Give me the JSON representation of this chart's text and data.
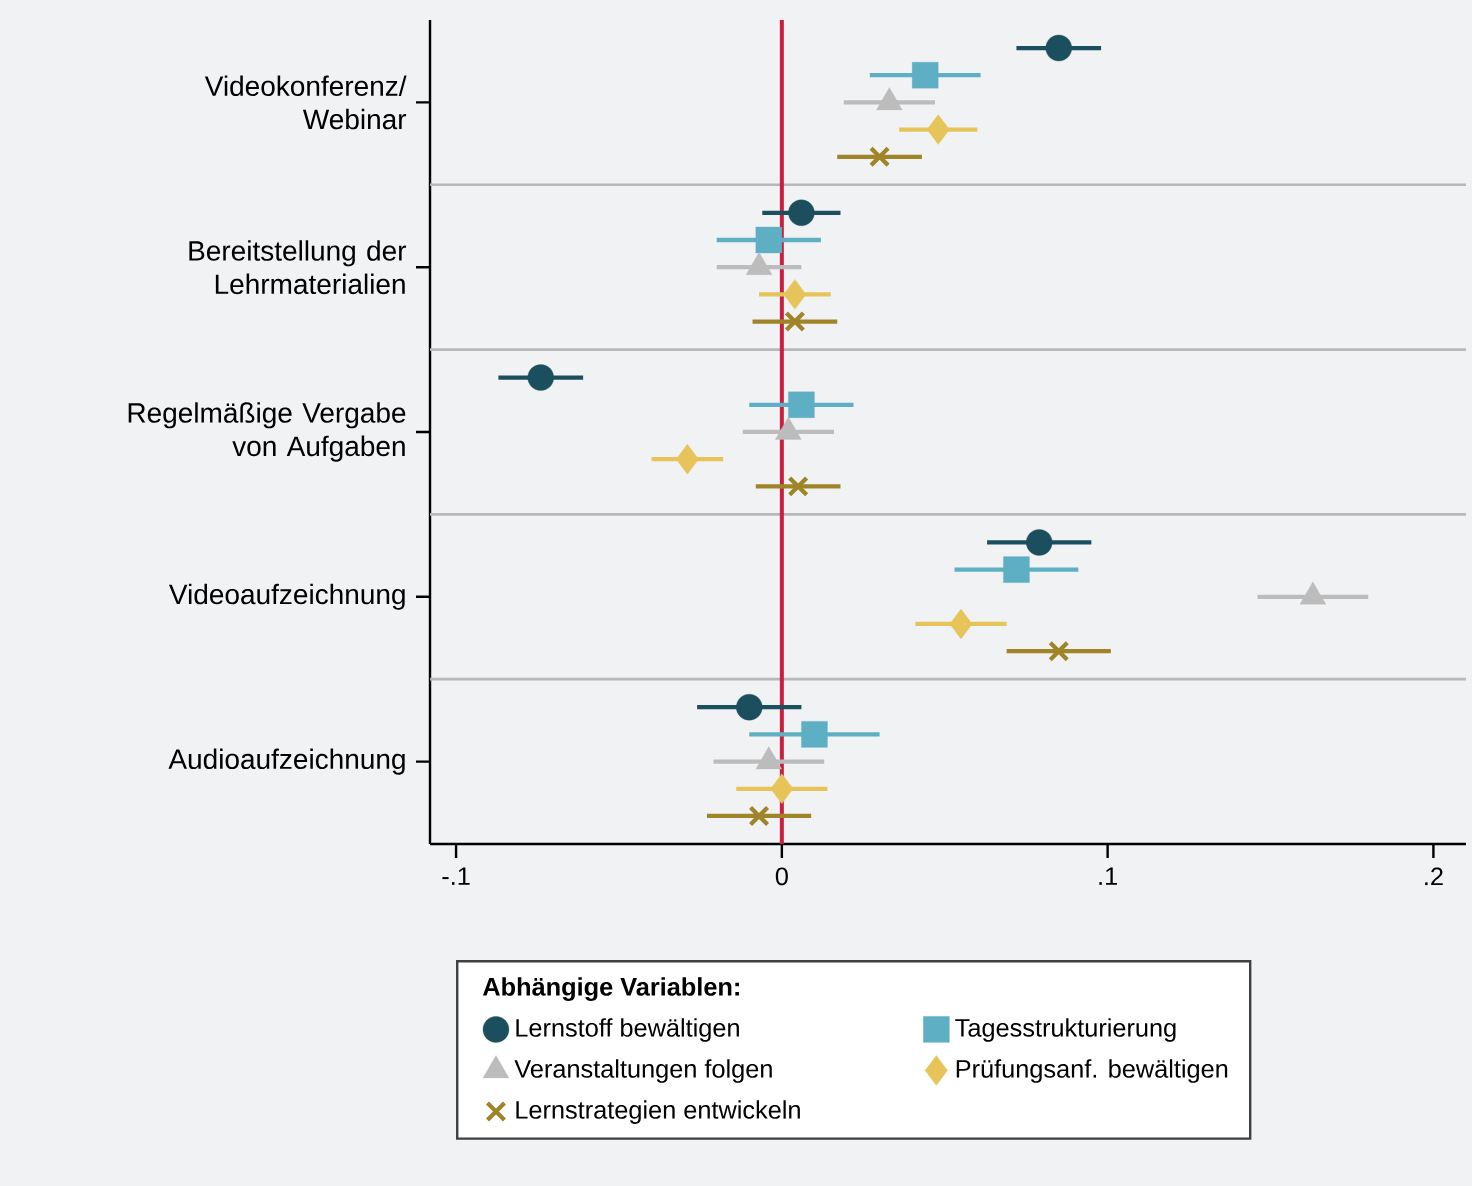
{
  "chart_data": {
    "type": "scatter",
    "orientation": "horizontal",
    "categories": [
      "Videokonferenz/ Webinar",
      "Bereitstellung der Lehrmaterialien",
      "Regelmäßige Vergabe von Aufgaben",
      "Videoaufzeichnung",
      "Audioaufzeichnung"
    ],
    "series": [
      {
        "name": "Lernstoff bewältigen",
        "color": "#1b4f5e",
        "marker": "circle",
        "values": [
          0.085,
          0.006,
          -0.074,
          0.079,
          -0.01
        ],
        "errors": [
          0.013,
          0.012,
          0.013,
          0.016,
          0.016
        ]
      },
      {
        "name": "Tagesstrukturierung",
        "color": "#5fafc4",
        "marker": "square",
        "values": [
          0.044,
          -0.004,
          0.006,
          0.072,
          0.01
        ],
        "errors": [
          0.017,
          0.016,
          0.016,
          0.019,
          0.02
        ]
      },
      {
        "name": "Veranstaltungen folgen",
        "color": "#bcbcbc",
        "marker": "triangle",
        "values": [
          0.033,
          -0.007,
          0.002,
          0.163,
          -0.004
        ],
        "errors": [
          0.014,
          0.013,
          0.014,
          0.017,
          0.017
        ]
      },
      {
        "name": "Prüfungsanf. bewältigen",
        "color": "#e6c45a",
        "marker": "diamond",
        "values": [
          0.048,
          0.004,
          -0.029,
          0.055,
          0.0
        ],
        "errors": [
          0.012,
          0.011,
          0.011,
          0.014,
          0.014
        ]
      },
      {
        "name": "Lernstrategien entwickeln",
        "color": "#a08428",
        "marker": "cross",
        "values": [
          0.03,
          0.004,
          0.005,
          0.085,
          -0.007
        ],
        "errors": [
          0.013,
          0.013,
          0.013,
          0.016,
          0.016
        ]
      }
    ],
    "xlim": [
      -0.108,
      0.21
    ],
    "xticks": [
      {
        "value": -0.1,
        "label": "-.1"
      },
      0,
      {
        "value": 0.1,
        "label": ".1"
      },
      {
        "value": 0.2,
        "label": ".2"
      }
    ],
    "ref_lines": [
      {
        "axis": "x",
        "value": 0,
        "color": "#c8203c"
      }
    ],
    "legend": "bottom",
    "legend_title": "Abhängige Variablen:"
  }
}
